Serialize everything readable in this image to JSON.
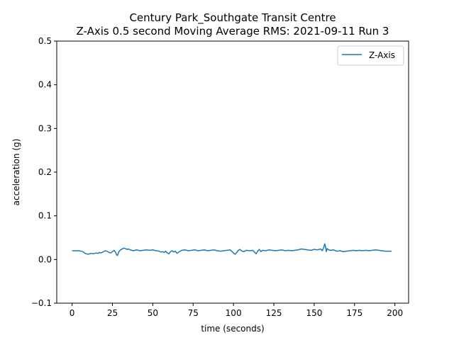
{
  "chart_data": {
    "type": "line",
    "title": "Century Park_Southgate Transit Centre",
    "subtitle": "Z-Axis 0.5 second Moving Average RMS: 2021-09-11 Run 3",
    "xlabel": "time (seconds)",
    "ylabel": "acceleration (g)",
    "xlim": [
      -9.5,
      208.5
    ],
    "ylim": [
      -0.1,
      0.5
    ],
    "xticks": [
      0,
      25,
      50,
      75,
      100,
      125,
      150,
      175,
      200
    ],
    "yticks": [
      -0.1,
      0.0,
      0.1,
      0.2,
      0.3,
      0.4,
      0.5
    ],
    "yticks_labels": [
      "−0.1",
      "0.0",
      "0.1",
      "0.2",
      "0.3",
      "0.4",
      "0.5"
    ],
    "grid": false,
    "legend": "upper-right",
    "series": [
      {
        "name": "Z-Axis",
        "color": "#1f77b4",
        "x": [
          0,
          2,
          4,
          6,
          7,
          8,
          9,
          10,
          11,
          12,
          13,
          14,
          15,
          16,
          17,
          18,
          19,
          20,
          21,
          22,
          23,
          24,
          25,
          26,
          27,
          27.5,
          28,
          28.5,
          29,
          30,
          31,
          32,
          33,
          34,
          35,
          36,
          37,
          38,
          40,
          42,
          44,
          46,
          48,
          50,
          52,
          54,
          55,
          56,
          57,
          58,
          59,
          60,
          61,
          62,
          63,
          64,
          65,
          66,
          67,
          68,
          70,
          72,
          74,
          76,
          78,
          80,
          82,
          84,
          86,
          88,
          90,
          92,
          94,
          96,
          98,
          100,
          101,
          102,
          103,
          104,
          105,
          106,
          107,
          108,
          110,
          112,
          113,
          114,
          115,
          116,
          117,
          118,
          120,
          122,
          124,
          126,
          128,
          130,
          132,
          134,
          136,
          138,
          140,
          142,
          144,
          146,
          148,
          150,
          152,
          154,
          155,
          156,
          156.5,
          157,
          157.5,
          158,
          159,
          160,
          162,
          164,
          166,
          168,
          170,
          172,
          174,
          176,
          178,
          180,
          182,
          184,
          186,
          188,
          190,
          192,
          194,
          196,
          198
        ],
        "y": [
          0.02,
          0.02,
          0.02,
          0.019,
          0.017,
          0.014,
          0.013,
          0.012,
          0.013,
          0.014,
          0.013,
          0.014,
          0.015,
          0.014,
          0.016,
          0.015,
          0.017,
          0.019,
          0.02,
          0.018,
          0.016,
          0.015,
          0.018,
          0.021,
          0.016,
          0.011,
          0.009,
          0.013,
          0.018,
          0.022,
          0.024,
          0.026,
          0.025,
          0.023,
          0.024,
          0.022,
          0.021,
          0.02,
          0.022,
          0.02,
          0.021,
          0.022,
          0.021,
          0.022,
          0.02,
          0.019,
          0.017,
          0.018,
          0.016,
          0.019,
          0.015,
          0.013,
          0.018,
          0.02,
          0.017,
          0.019,
          0.014,
          0.017,
          0.019,
          0.021,
          0.022,
          0.02,
          0.021,
          0.022,
          0.02,
          0.021,
          0.022,
          0.02,
          0.021,
          0.022,
          0.02,
          0.019,
          0.02,
          0.021,
          0.022,
          0.015,
          0.012,
          0.016,
          0.021,
          0.023,
          0.02,
          0.018,
          0.019,
          0.021,
          0.02,
          0.021,
          0.017,
          0.013,
          0.019,
          0.023,
          0.018,
          0.021,
          0.02,
          0.022,
          0.021,
          0.02,
          0.021,
          0.022,
          0.02,
          0.021,
          0.02,
          0.021,
          0.022,
          0.024,
          0.023,
          0.022,
          0.021,
          0.023,
          0.022,
          0.024,
          0.02,
          0.028,
          0.036,
          0.03,
          0.018,
          0.025,
          0.022,
          0.021,
          0.022,
          0.019,
          0.02,
          0.018,
          0.019,
          0.02,
          0.021,
          0.02,
          0.021,
          0.02,
          0.021,
          0.02,
          0.021,
          0.022,
          0.021,
          0.02,
          0.019,
          0.019,
          0.019
        ]
      }
    ]
  }
}
